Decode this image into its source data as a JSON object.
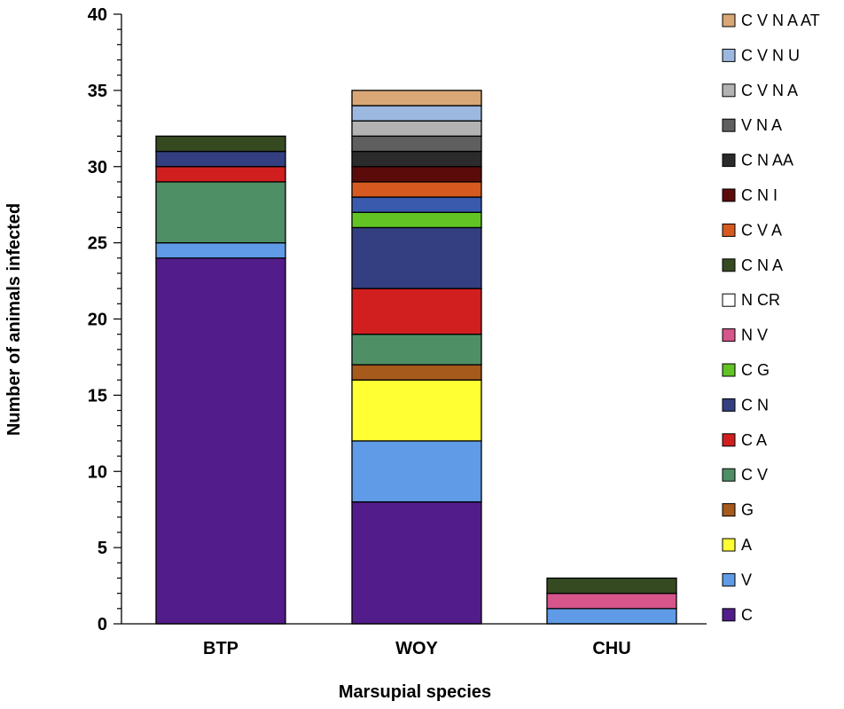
{
  "chart_data": {
    "type": "bar",
    "stacked": true,
    "title": "",
    "xlabel": "Marsupial species",
    "ylabel": "Number of animals infected",
    "ylim": [
      0,
      40
    ],
    "yticks": [
      0,
      5,
      10,
      15,
      20,
      25,
      30,
      35,
      40
    ],
    "categories": [
      "BTP",
      "WOY",
      "CHU"
    ],
    "legend_position": "right",
    "legend": [
      {
        "name": "C V N A AT",
        "color": "#d9a775"
      },
      {
        "name": "C V N U",
        "color": "#9db8e0"
      },
      {
        "name": "C V N A",
        "color": "#b3b3b3"
      },
      {
        "name": "V N A",
        "color": "#5f5f5f"
      },
      {
        "name": "C N AA",
        "color": "#2b2b2b"
      },
      {
        "name": "C N I",
        "color": "#5c0b0b"
      },
      {
        "name": "C V A",
        "color": "#d65a20"
      },
      {
        "name": "C N A",
        "color": "#364a22"
      },
      {
        "name": "N CR",
        "color": "#ffffff"
      },
      {
        "name": "N V",
        "color": "#d6558a"
      },
      {
        "name": "C G",
        "color": "#62c424"
      },
      {
        "name": "C N",
        "color": "#333f80"
      },
      {
        "name": "C A",
        "color": "#d11f1f"
      },
      {
        "name": "C V",
        "color": "#4f8f66"
      },
      {
        "name": "G",
        "color": "#a65a1c"
      },
      {
        "name": "A",
        "color": "#ffff33"
      },
      {
        "name": "V",
        "color": "#5f9be6"
      },
      {
        "name": "C",
        "color": "#521d8a"
      }
    ],
    "bars": [
      {
        "category": "BTP",
        "segments": [
          {
            "series": "C",
            "value": 24,
            "color": "#521d8a"
          },
          {
            "series": "V",
            "value": 1,
            "color": "#5f9be6"
          },
          {
            "series": "C V",
            "value": 4,
            "color": "#4f8f66"
          },
          {
            "series": "C A",
            "value": 1,
            "color": "#d11f1f"
          },
          {
            "series": "C N",
            "value": 1,
            "color": "#333f80"
          },
          {
            "series": "C N A",
            "value": 1,
            "color": "#364a22"
          }
        ]
      },
      {
        "category": "WOY",
        "segments": [
          {
            "series": "C",
            "value": 8,
            "color": "#521d8a"
          },
          {
            "series": "V",
            "value": 4,
            "color": "#5f9be6"
          },
          {
            "series": "A",
            "value": 4,
            "color": "#ffff33"
          },
          {
            "series": "G",
            "value": 1,
            "color": "#a65a1c"
          },
          {
            "series": "C V",
            "value": 2,
            "color": "#4f8f66"
          },
          {
            "series": "C A",
            "value": 3,
            "color": "#d11f1f"
          },
          {
            "series": "C N",
            "value": 4,
            "color": "#333f80"
          },
          {
            "series": "C G",
            "value": 1,
            "color": "#62c424"
          },
          {
            "series": "C N",
            "value": 1,
            "color": "#3a5aad"
          },
          {
            "series": "C V A",
            "value": 1,
            "color": "#d65a20"
          },
          {
            "series": "C N I",
            "value": 1,
            "color": "#5c0b0b"
          },
          {
            "series": "C N AA",
            "value": 1,
            "color": "#2b2b2b"
          },
          {
            "series": "V N A",
            "value": 1,
            "color": "#5f5f5f"
          },
          {
            "series": "C V N A",
            "value": 1,
            "color": "#b3b3b3"
          },
          {
            "series": "C V N U",
            "value": 1,
            "color": "#9db8e0"
          },
          {
            "series": "C V N A AT",
            "value": 1,
            "color": "#d9a775"
          }
        ]
      },
      {
        "category": "CHU",
        "segments": [
          {
            "series": "V",
            "value": 1,
            "color": "#5f9be6"
          },
          {
            "series": "N V",
            "value": 1,
            "color": "#d6558a"
          },
          {
            "series": "C N A",
            "value": 1,
            "color": "#364a22"
          }
        ]
      }
    ]
  }
}
